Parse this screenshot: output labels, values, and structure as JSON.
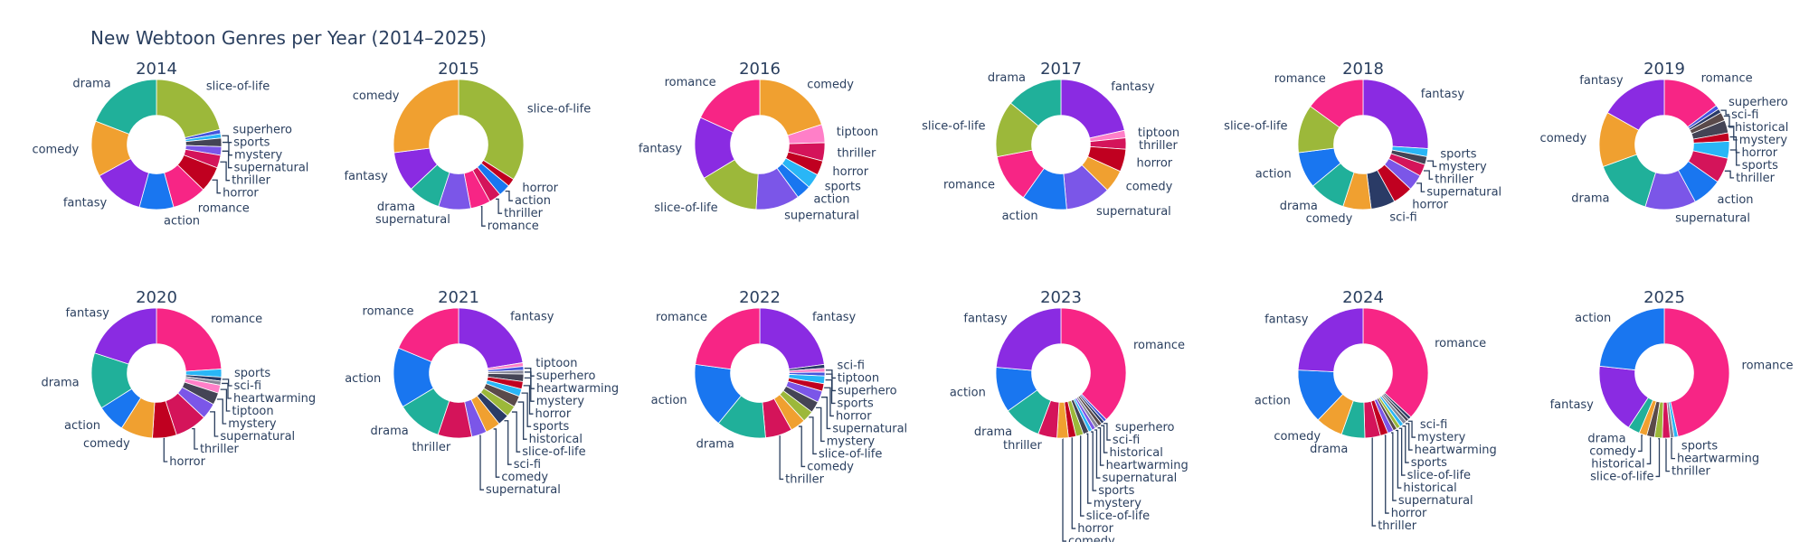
{
  "chart_title": "New Webtoon Genres per Year (2014–2025)",
  "colors": {
    "romance": "#F72585",
    "fantasy": "#8A2BE2",
    "action": "#1976F0",
    "drama": "#20B09A",
    "comedy": "#F0A030",
    "slice-of-life": "#9CB83A",
    "horror": "#C00020",
    "thriller": "#D4145A",
    "supernatural": "#7B56E8",
    "mystery": "#444455",
    "sports": "#29B6F6",
    "superhero": "#4455DD",
    "sci-fi": "#2A3B66",
    "historical": "#5A4A4A",
    "heartwarming": "#888899",
    "tiptoon": "#FF7FC8"
  },
  "chart_data": {
    "type": "pie",
    "hole": 0.45,
    "title": "New Webtoon Genres per Year (2014–2025)",
    "charts": [
      {
        "title": "2014",
        "slices": [
          {
            "label": "slice-of-life",
            "value": 20
          },
          {
            "label": "superhero",
            "value": 1
          },
          {
            "label": "sports",
            "value": 1
          },
          {
            "label": "mystery",
            "value": 2
          },
          {
            "label": "supernatural",
            "value": 2
          },
          {
            "label": "thriller",
            "value": 3
          },
          {
            "label": "horror",
            "value": 6
          },
          {
            "label": "romance",
            "value": 8
          },
          {
            "label": "action",
            "value": 8
          },
          {
            "label": "fantasy",
            "value": 12
          },
          {
            "label": "comedy",
            "value": 13
          },
          {
            "label": "drama",
            "value": 18
          }
        ]
      },
      {
        "title": "2015",
        "slices": [
          {
            "label": "slice-of-life",
            "value": 34
          },
          {
            "label": "horror",
            "value": 2
          },
          {
            "label": "action",
            "value": 3
          },
          {
            "label": "thriller",
            "value": 3
          },
          {
            "label": "romance",
            "value": 5
          },
          {
            "label": "supernatural",
            "value": 8
          },
          {
            "label": "drama",
            "value": 8
          },
          {
            "label": "fantasy",
            "value": 10
          },
          {
            "label": "comedy",
            "value": 27
          }
        ]
      },
      {
        "title": "2016",
        "slices": [
          {
            "label": "comedy",
            "value": 22
          },
          {
            "label": "tiptoon",
            "value": 5
          },
          {
            "label": "thriller",
            "value": 5
          },
          {
            "label": "horror",
            "value": 4
          },
          {
            "label": "sports",
            "value": 4
          },
          {
            "label": "action",
            "value": 4
          },
          {
            "label": "supernatural",
            "value": 12
          },
          {
            "label": "slice-of-life",
            "value": 17
          },
          {
            "label": "fantasy",
            "value": 17
          },
          {
            "label": "romance",
            "value": 20
          }
        ]
      },
      {
        "title": "2017",
        "slices": [
          {
            "label": "fantasy",
            "value": 23
          },
          {
            "label": "tiptoon",
            "value": 2
          },
          {
            "label": "thriller",
            "value": 3
          },
          {
            "label": "horror",
            "value": 6
          },
          {
            "label": "comedy",
            "value": 6
          },
          {
            "label": "supernatural",
            "value": 12
          },
          {
            "label": "action",
            "value": 12
          },
          {
            "label": "romance",
            "value": 13
          },
          {
            "label": "slice-of-life",
            "value": 15
          },
          {
            "label": "drama",
            "value": 15
          }
        ]
      },
      {
        "title": "2018",
        "slices": [
          {
            "label": "fantasy",
            "value": 26
          },
          {
            "label": "sports",
            "value": 2
          },
          {
            "label": "mystery",
            "value": 2
          },
          {
            "label": "thriller",
            "value": 3
          },
          {
            "label": "supernatural",
            "value": 4
          },
          {
            "label": "horror",
            "value": 5
          },
          {
            "label": "sci-fi",
            "value": 6
          },
          {
            "label": "comedy",
            "value": 7
          },
          {
            "label": "drama",
            "value": 9
          },
          {
            "label": "action",
            "value": 9
          },
          {
            "label": "slice-of-life",
            "value": 12
          },
          {
            "label": "romance",
            "value": 15
          }
        ]
      },
      {
        "title": "2019",
        "slices": [
          {
            "label": "romance",
            "value": 14
          },
          {
            "label": "superhero",
            "value": 1
          },
          {
            "label": "sci-fi",
            "value": 1
          },
          {
            "label": "historical",
            "value": 2
          },
          {
            "label": "mystery",
            "value": 3
          },
          {
            "label": "horror",
            "value": 2
          },
          {
            "label": "sports",
            "value": 4
          },
          {
            "label": "thriller",
            "value": 6
          },
          {
            "label": "action",
            "value": 7
          },
          {
            "label": "supernatural",
            "value": 12
          },
          {
            "label": "drama",
            "value": 14
          },
          {
            "label": "comedy",
            "value": 13
          },
          {
            "label": "fantasy",
            "value": 16
          }
        ]
      },
      {
        "title": "2020",
        "slices": [
          {
            "label": "romance",
            "value": 24
          },
          {
            "label": "sports",
            "value": 2
          },
          {
            "label": "sci-fi",
            "value": 1
          },
          {
            "label": "heartwarming",
            "value": 1
          },
          {
            "label": "tiptoon",
            "value": 2
          },
          {
            "label": "mystery",
            "value": 3
          },
          {
            "label": "supernatural",
            "value": 4
          },
          {
            "label": "thriller",
            "value": 8
          },
          {
            "label": "horror",
            "value": 6
          },
          {
            "label": "comedy",
            "value": 8
          },
          {
            "label": "action",
            "value": 7
          },
          {
            "label": "drama",
            "value": 14
          },
          {
            "label": "fantasy",
            "value": 20
          }
        ]
      },
      {
        "title": "2021",
        "slices": [
          {
            "label": "fantasy",
            "value": 24
          },
          {
            "label": "tiptoon",
            "value": 1
          },
          {
            "label": "superhero",
            "value": 1
          },
          {
            "label": "heartwarming",
            "value": 1
          },
          {
            "label": "mystery",
            "value": 2
          },
          {
            "label": "horror",
            "value": 2
          },
          {
            "label": "sports",
            "value": 2
          },
          {
            "label": "historical",
            "value": 3
          },
          {
            "label": "slice-of-life",
            "value": 3
          },
          {
            "label": "sci-fi",
            "value": 3
          },
          {
            "label": "comedy",
            "value": 4
          },
          {
            "label": "supernatural",
            "value": 4
          },
          {
            "label": "thriller",
            "value": 9
          },
          {
            "label": "drama",
            "value": 12
          },
          {
            "label": "action",
            "value": 16
          },
          {
            "label": "romance",
            "value": 20
          }
        ]
      },
      {
        "title": "2022",
        "slices": [
          {
            "label": "fantasy",
            "value": 24
          },
          {
            "label": "sci-fi",
            "value": 1
          },
          {
            "label": "tiptoon",
            "value": 1
          },
          {
            "label": "superhero",
            "value": 1
          },
          {
            "label": "sports",
            "value": 2
          },
          {
            "label": "horror",
            "value": 2
          },
          {
            "label": "supernatural",
            "value": 3
          },
          {
            "label": "mystery",
            "value": 3
          },
          {
            "label": "slice-of-life",
            "value": 3
          },
          {
            "label": "comedy",
            "value": 4
          },
          {
            "label": "thriller",
            "value": 7
          },
          {
            "label": "drama",
            "value": 13
          },
          {
            "label": "action",
            "value": 17
          },
          {
            "label": "romance",
            "value": 24
          }
        ]
      },
      {
        "title": "2023",
        "slices": [
          {
            "label": "romance",
            "value": 40
          },
          {
            "label": "superhero",
            "value": 0.8
          },
          {
            "label": "sci-fi",
            "value": 0.8
          },
          {
            "label": "historical",
            "value": 1
          },
          {
            "label": "heartwarming",
            "value": 1
          },
          {
            "label": "supernatural",
            "value": 1
          },
          {
            "label": "sports",
            "value": 1
          },
          {
            "label": "mystery",
            "value": 1.5
          },
          {
            "label": "slice-of-life",
            "value": 2
          },
          {
            "label": "horror",
            "value": 2
          },
          {
            "label": "comedy",
            "value": 3
          },
          {
            "label": "thriller",
            "value": 5
          },
          {
            "label": "drama",
            "value": 10
          },
          {
            "label": "action",
            "value": 12
          },
          {
            "label": "fantasy",
            "value": 25
          }
        ]
      },
      {
        "title": "2024",
        "slices": [
          {
            "label": "romance",
            "value": 38
          },
          {
            "label": "sci-fi",
            "value": 0.8
          },
          {
            "label": "mystery",
            "value": 0.8
          },
          {
            "label": "heartwarming",
            "value": 1
          },
          {
            "label": "sports",
            "value": 1
          },
          {
            "label": "slice-of-life",
            "value": 1
          },
          {
            "label": "historical",
            "value": 1
          },
          {
            "label": "supernatural",
            "value": 1.5
          },
          {
            "label": "horror",
            "value": 2
          },
          {
            "label": "thriller",
            "value": 4
          },
          {
            "label": "drama",
            "value": 6
          },
          {
            "label": "comedy",
            "value": 7
          },
          {
            "label": "action",
            "value": 14
          },
          {
            "label": "fantasy",
            "value": 25
          }
        ]
      },
      {
        "title": "2025",
        "slices": [
          {
            "label": "romance",
            "value": 48
          },
          {
            "label": "sports",
            "value": 1
          },
          {
            "label": "heartwarming",
            "value": 1
          },
          {
            "label": "thriller",
            "value": 2
          },
          {
            "label": "slice-of-life",
            "value": 2
          },
          {
            "label": "historical",
            "value": 2
          },
          {
            "label": "comedy",
            "value": 2
          },
          {
            "label": "drama",
            "value": 3
          },
          {
            "label": "fantasy",
            "value": 18
          },
          {
            "label": "action",
            "value": 24
          }
        ]
      }
    ]
  }
}
